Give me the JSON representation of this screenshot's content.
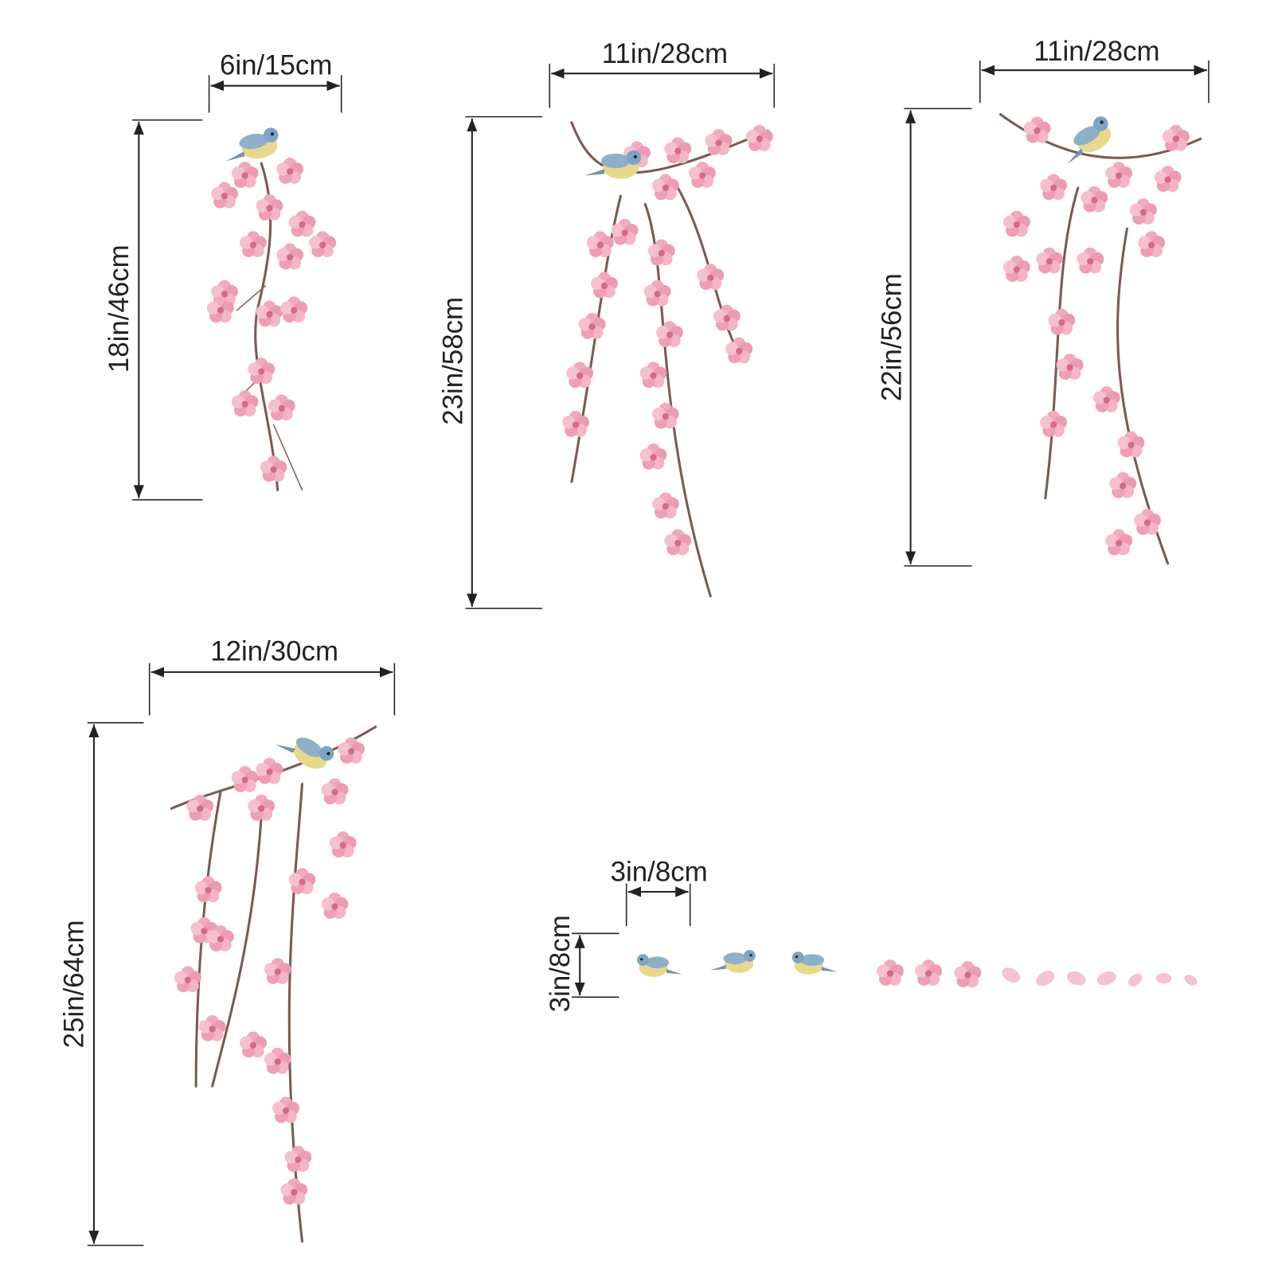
{
  "decals": [
    {
      "width": "6in/15cm",
      "height": "18in/46cm"
    },
    {
      "width": "11in/28cm",
      "height": "23in/58cm"
    },
    {
      "width": "11in/28cm",
      "height": "22in/56cm"
    },
    {
      "width": "12in/30cm",
      "height": "25in/64cm"
    }
  ],
  "birds": {
    "width": "3in/8cm",
    "height": "3in/8cm"
  }
}
